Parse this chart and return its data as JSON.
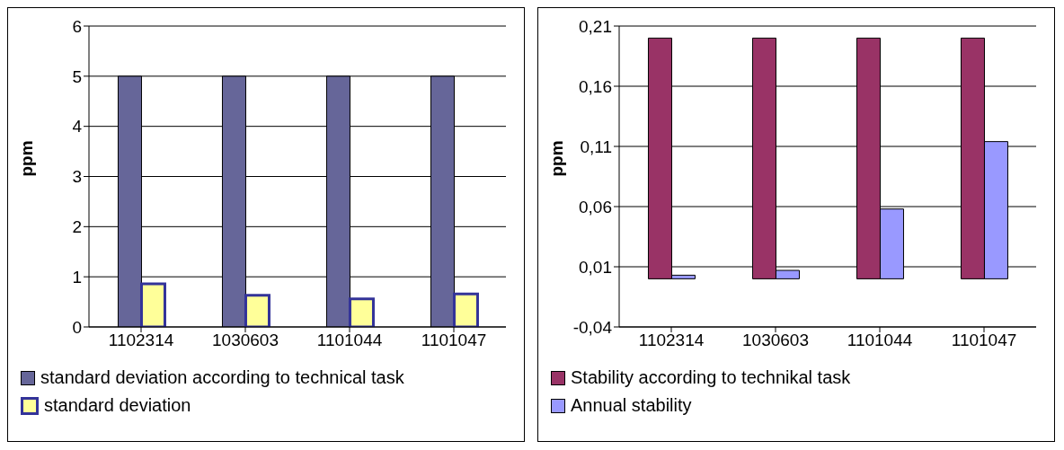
{
  "chart_data": [
    {
      "type": "bar",
      "ylabel": "ppm",
      "categories": [
        "1102314",
        "1030603",
        "1101044",
        "1101047"
      ],
      "ylim": [
        0,
        6
      ],
      "yticks": [
        0,
        1,
        2,
        3,
        4,
        5,
        6
      ],
      "grid": "y",
      "legend": "bottom",
      "series": [
        {
          "name": "standard deviation according to technical task",
          "color": "#666699",
          "values": [
            5,
            5,
            5,
            5
          ]
        },
        {
          "name": "standard deviation",
          "color": "#ffff99",
          "values": [
            0.86,
            0.63,
            0.56,
            0.66
          ]
        }
      ]
    },
    {
      "type": "bar",
      "ylabel": "ppm",
      "categories": [
        "1102314",
        "1030603",
        "1101044",
        "1101047"
      ],
      "ylim": [
        -0.04,
        0.21
      ],
      "yticks": [
        {
          "value": -0.04,
          "label": "-0,04"
        },
        {
          "value": 0.01,
          "label": "0,01"
        },
        {
          "value": 0.06,
          "label": "0,06"
        },
        {
          "value": 0.11,
          "label": "0,11"
        },
        {
          "value": 0.16,
          "label": "0,16"
        },
        {
          "value": 0.21,
          "label": "0,21"
        }
      ],
      "grid": "y",
      "legend": "bottom",
      "series": [
        {
          "name": "Stability according to technikal task",
          "color": "#993366",
          "values": [
            0.2,
            0.2,
            0.2,
            0.2
          ]
        },
        {
          "name": "Annual stability",
          "color": "#9999ff",
          "values": [
            0.003,
            0.007,
            0.058,
            0.114
          ]
        }
      ]
    }
  ]
}
